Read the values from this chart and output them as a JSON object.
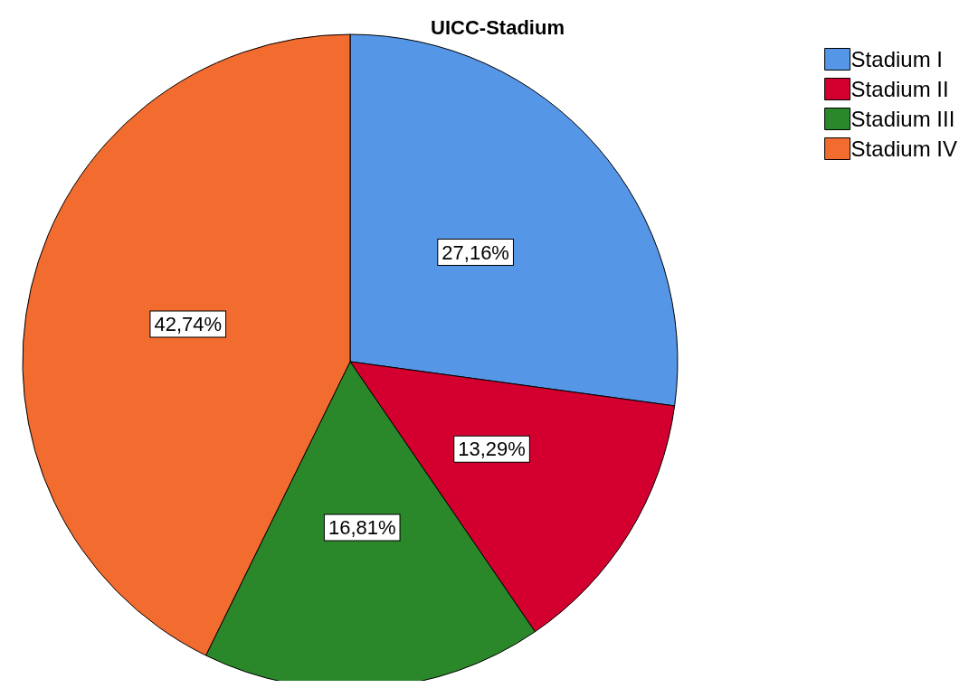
{
  "chart_data": {
    "type": "pie",
    "title": "UICC-Stadium",
    "categories": [
      "Stadium I",
      "Stadium II",
      "Stadium III",
      "Stadium IV"
    ],
    "values": [
      27.16,
      13.29,
      16.81,
      42.74
    ],
    "colors": [
      "#5596e6",
      "#d3002f",
      "#2a872a",
      "#f26b2f"
    ],
    "value_labels": [
      "27,16%",
      "13,29%",
      "16,81%",
      "42,74%"
    ],
    "legend": "top right"
  }
}
